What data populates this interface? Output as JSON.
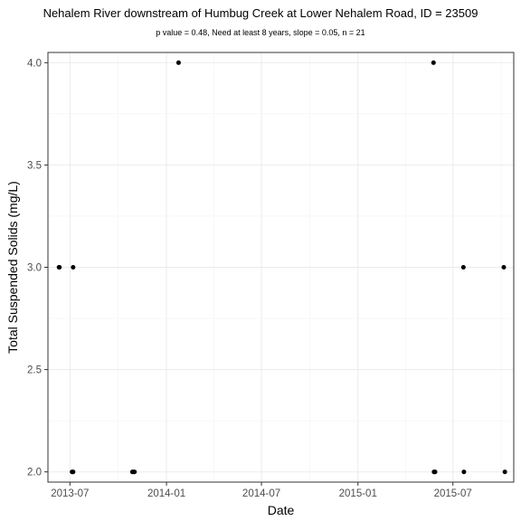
{
  "chart_data": {
    "type": "scatter",
    "title": "Nehalem River downstream of Humbug Creek at Lower Nehalem Road, ID = 23509",
    "subtitle": "p value = 0.48, Need at least 8 years, slope = 0.05, n = 21",
    "xlabel": "Date",
    "ylabel": "Total Suspended Solids (mg/L)",
    "x_ticks": [
      "2013-07",
      "2014-01",
      "2014-07",
      "2015-01",
      "2015-07"
    ],
    "y_ticks": [
      "2.0",
      "2.5",
      "3.0",
      "3.5",
      "4.0"
    ],
    "xlim": [
      "2013-05-20",
      "2015-10-25"
    ],
    "ylim": [
      1.95,
      4.05
    ],
    "grid": true,
    "points": [
      {
        "x": "2013-06-10",
        "y": 3.0
      },
      {
        "x": "2013-06-11",
        "y": 3.0
      },
      {
        "x": "2013-07-07",
        "y": 3.0
      },
      {
        "x": "2013-07-05",
        "y": 2.0
      },
      {
        "x": "2013-07-06",
        "y": 2.0
      },
      {
        "x": "2013-07-07",
        "y": 2.0
      },
      {
        "x": "2013-10-28",
        "y": 2.0
      },
      {
        "x": "2013-10-30",
        "y": 2.0
      },
      {
        "x": "2013-11-01",
        "y": 2.0
      },
      {
        "x": "2014-01-24",
        "y": 4.0
      },
      {
        "x": "2015-05-25",
        "y": 4.0
      },
      {
        "x": "2015-05-26",
        "y": 2.0
      },
      {
        "x": "2015-05-27",
        "y": 2.0
      },
      {
        "x": "2015-05-28",
        "y": 2.0
      },
      {
        "x": "2015-07-21",
        "y": 3.0
      },
      {
        "x": "2015-07-22",
        "y": 2.0
      },
      {
        "x": "2015-10-06",
        "y": 3.0
      },
      {
        "x": "2015-10-08",
        "y": 2.0
      }
    ]
  }
}
